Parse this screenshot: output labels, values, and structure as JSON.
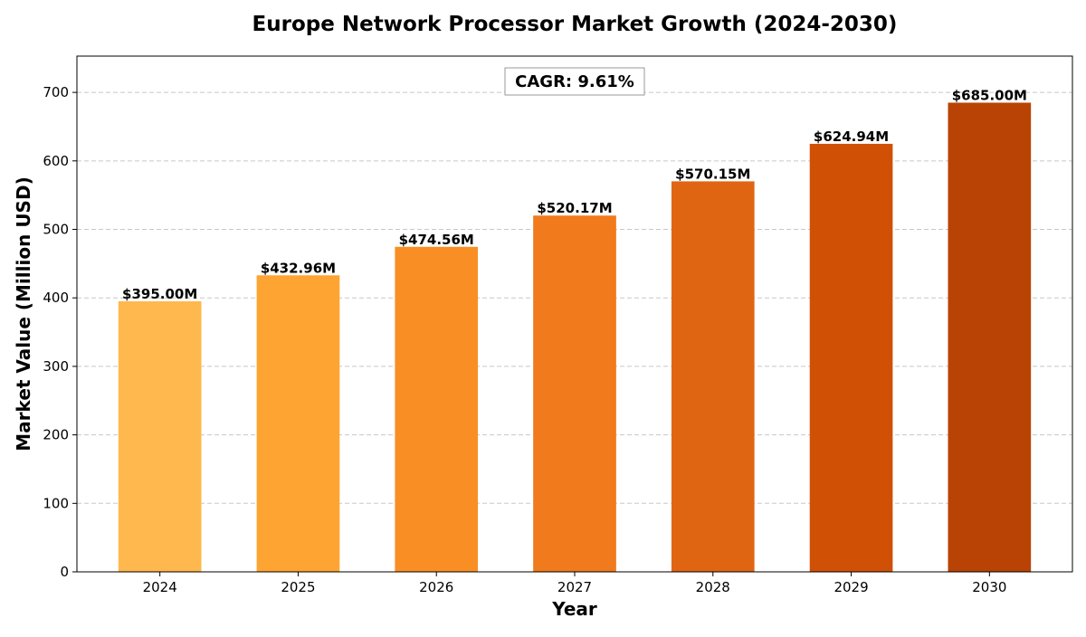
{
  "chart_data": {
    "type": "bar",
    "title": "Europe Network Processor Market Growth (2024-2030)",
    "xlabel": "Year",
    "ylabel": "Market Value (Million USD)",
    "categories": [
      "2024",
      "2025",
      "2026",
      "2027",
      "2028",
      "2029",
      "2030"
    ],
    "values": [
      395.0,
      432.96,
      474.56,
      520.17,
      570.15,
      624.94,
      685.0
    ],
    "data_labels": [
      "$395.00M",
      "$432.96M",
      "$474.56M",
      "$520.17M",
      "$570.15M",
      "$624.94M",
      "$685.00M"
    ],
    "colors": [
      "#ffb84d",
      "#fea433",
      "#f98f24",
      "#f07a1c",
      "#e06512",
      "#d05106",
      "#b84304"
    ],
    "ylim": [
      0,
      753
    ],
    "yticks": [
      0,
      100,
      200,
      300,
      400,
      500,
      600,
      700
    ],
    "grid": "y-axis dashed",
    "annotation": "CAGR: 9.61%"
  }
}
